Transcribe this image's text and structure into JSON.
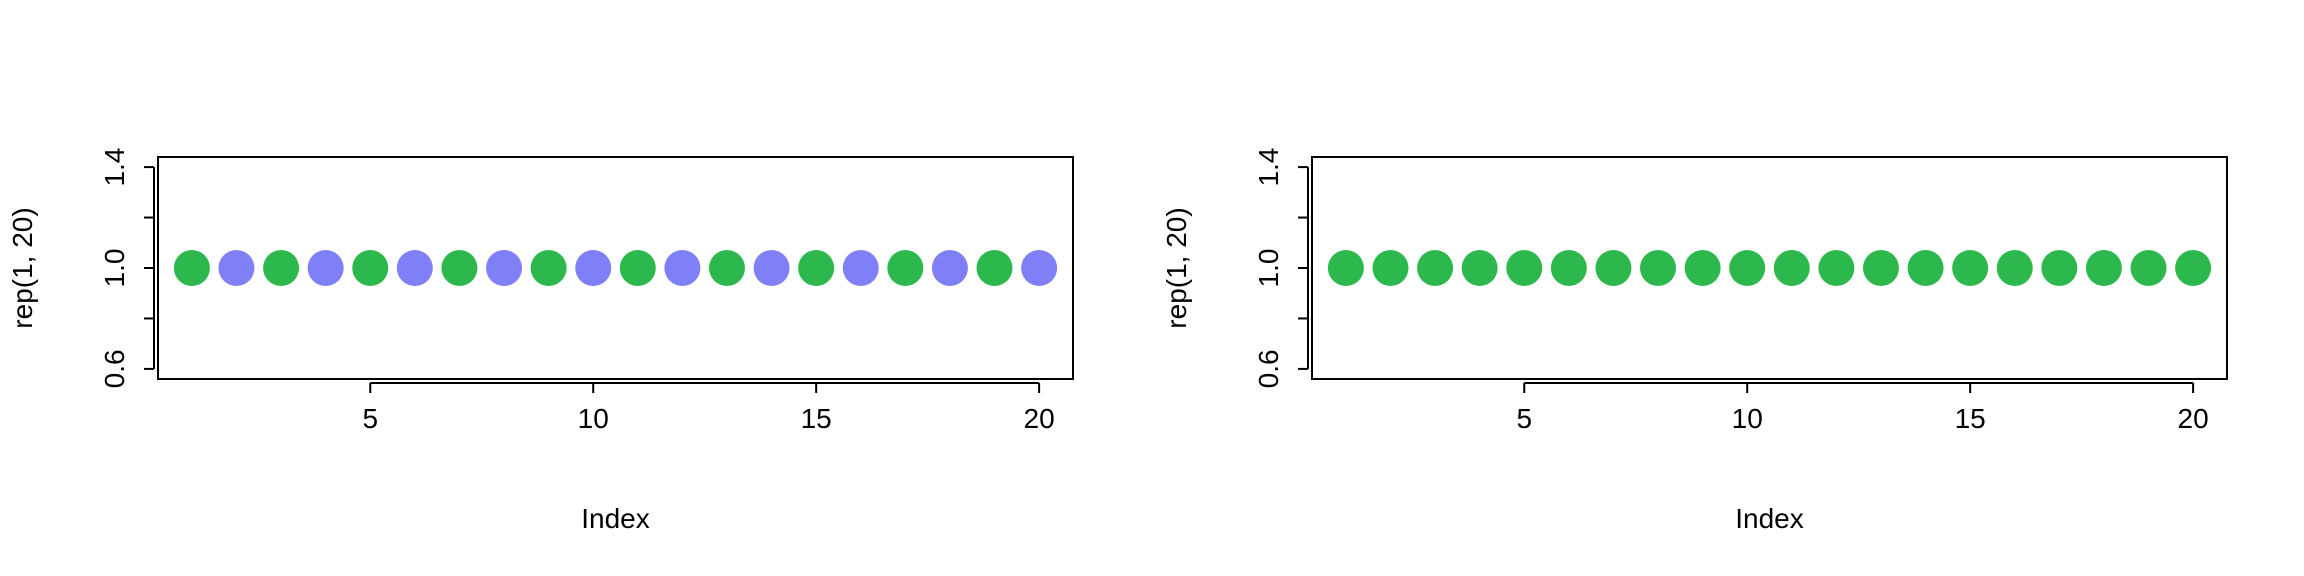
{
  "chart_data": [
    {
      "type": "scatter",
      "title": "",
      "xlabel": "Index",
      "ylabel": "rep(1, 20)",
      "xlim": [
        0.24,
        20.76
      ],
      "ylim": [
        0.56,
        1.44
      ],
      "xticks": [
        5,
        10,
        15,
        20
      ],
      "xtick_labels": [
        "5",
        "10",
        "15",
        "20"
      ],
      "yticks": [
        0.6,
        0.8,
        1.0,
        1.2,
        1.4
      ],
      "ytick_labels": [
        "0.6",
        "",
        "1.0",
        "",
        "1.4"
      ],
      "grid": false,
      "legend": "none",
      "x": [
        1,
        2,
        3,
        4,
        5,
        6,
        7,
        8,
        9,
        10,
        11,
        12,
        13,
        14,
        15,
        16,
        17,
        18,
        19,
        20
      ],
      "y": [
        1,
        1,
        1,
        1,
        1,
        1,
        1,
        1,
        1,
        1,
        1,
        1,
        1,
        1,
        1,
        1,
        1,
        1,
        1,
        1
      ],
      "point_colors": [
        "#2db84d",
        "#7f7ff8",
        "#2db84d",
        "#7f7ff8",
        "#2db84d",
        "#7f7ff8",
        "#2db84d",
        "#7f7ff8",
        "#2db84d",
        "#7f7ff8",
        "#2db84d",
        "#7f7ff8",
        "#2db84d",
        "#7f7ff8",
        "#2db84d",
        "#7f7ff8",
        "#2db84d",
        "#7f7ff8",
        "#2db84d",
        "#7f7ff8"
      ]
    },
    {
      "type": "scatter",
      "title": "",
      "xlabel": "Index",
      "ylabel": "rep(1, 20)",
      "xlim": [
        0.24,
        20.76
      ],
      "ylim": [
        0.56,
        1.44
      ],
      "xticks": [
        5,
        10,
        15,
        20
      ],
      "xtick_labels": [
        "5",
        "10",
        "15",
        "20"
      ],
      "yticks": [
        0.6,
        0.8,
        1.0,
        1.2,
        1.4
      ],
      "ytick_labels": [
        "0.6",
        "",
        "1.0",
        "",
        "1.4"
      ],
      "grid": false,
      "legend": "none",
      "x": [
        1,
        2,
        3,
        4,
        5,
        6,
        7,
        8,
        9,
        10,
        11,
        12,
        13,
        14,
        15,
        16,
        17,
        18,
        19,
        20
      ],
      "y": [
        1,
        1,
        1,
        1,
        1,
        1,
        1,
        1,
        1,
        1,
        1,
        1,
        1,
        1,
        1,
        1,
        1,
        1,
        1,
        1
      ],
      "point_colors": [
        "#2db84d",
        "#2db84d",
        "#2db84d",
        "#2db84d",
        "#2db84d",
        "#2db84d",
        "#2db84d",
        "#2db84d",
        "#2db84d",
        "#2db84d",
        "#2db84d",
        "#2db84d",
        "#2db84d",
        "#2db84d",
        "#2db84d",
        "#2db84d",
        "#2db84d",
        "#2db84d",
        "#2db84d",
        "#2db84d"
      ]
    }
  ]
}
